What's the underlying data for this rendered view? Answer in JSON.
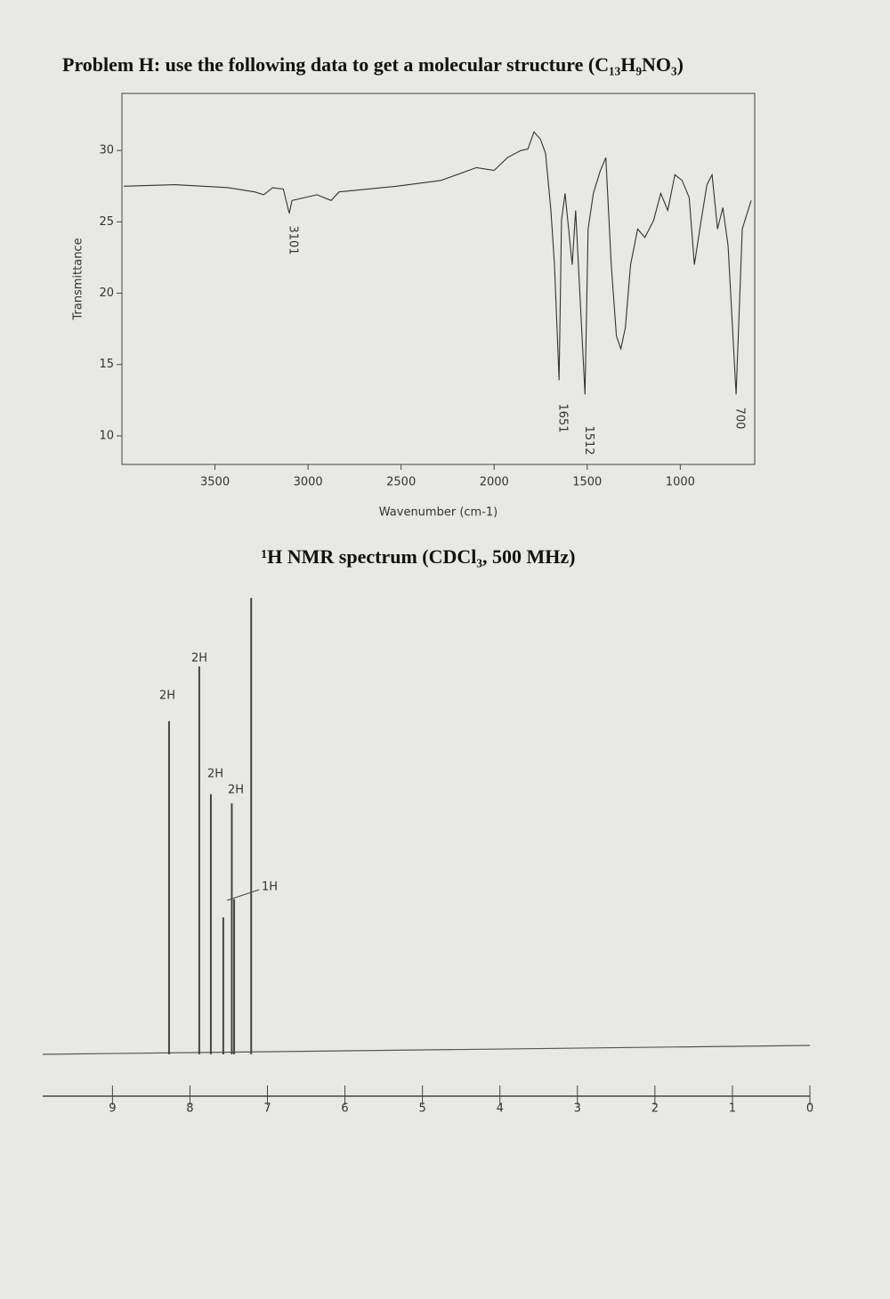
{
  "header": {
    "title": "Problem H: use the following data to get a molecular structure (C₁₃H₉NO₃)"
  },
  "chart_data": [
    {
      "type": "line",
      "x_label": "Wavenumber (cm-1)",
      "y_label": "Transmittance",
      "x": [
        3990,
        3714,
        3429,
        3286,
        3238,
        3190,
        3133,
        3101,
        3086,
        2952,
        2876,
        2833,
        2524,
        2286,
        2095,
        2000,
        1929,
        1857,
        1819,
        1786,
        1752,
        1724,
        1695,
        1676,
        1651,
        1638,
        1619,
        1581,
        1562,
        1512,
        1495,
        1467,
        1429,
        1400,
        1371,
        1343,
        1319,
        1295,
        1267,
        1229,
        1190,
        1143,
        1105,
        1067,
        1029,
        990,
        952,
        924,
        895,
        857,
        829,
        800,
        771,
        743,
        700,
        667,
        619
      ],
      "values": [
        27.5,
        27.6,
        27.4,
        27.1,
        26.9,
        27.4,
        27.3,
        25.6,
        26.5,
        26.9,
        26.5,
        27.1,
        27.5,
        27.9,
        28.8,
        28.6,
        29.5,
        30.0,
        30.1,
        31.3,
        30.8,
        29.8,
        25.8,
        22.0,
        13.9,
        25.1,
        27.0,
        22.0,
        25.8,
        12.9,
        24.5,
        27.0,
        28.6,
        29.5,
        22.0,
        17.0,
        16.1,
        17.6,
        22.0,
        24.5,
        23.9,
        25.1,
        27.0,
        25.8,
        28.3,
        27.9,
        26.7,
        22.0,
        24.5,
        27.6,
        28.3,
        24.5,
        26.0,
        23.3,
        12.9,
        24.5,
        26.5
      ],
      "color": "#333333",
      "xlim": [
        4000,
        600
      ],
      "xticks": [
        3500,
        3000,
        2500,
        2000,
        1500,
        1000
      ],
      "ylim": [
        8,
        34
      ],
      "yticks": [
        10,
        15,
        20,
        25,
        30
      ],
      "peak_labels": [
        3101,
        1651,
        1512,
        700
      ]
    },
    {
      "type": "nmr",
      "title": "¹H NMR spectrum (CDCl₃, 500 MHz)",
      "x": [
        8.27,
        7.88,
        7.73,
        7.57,
        7.46,
        7.43,
        7.21
      ],
      "values": [
        73,
        85,
        57,
        30,
        55,
        34,
        100
      ],
      "color": "#444444",
      "integrations": [
        "2H",
        "2H",
        "2H",
        "2H",
        "1H"
      ],
      "xlim": [
        9.9,
        0
      ],
      "xticks": [
        9,
        8,
        7,
        6,
        5,
        4,
        3,
        2,
        1,
        0
      ]
    }
  ]
}
